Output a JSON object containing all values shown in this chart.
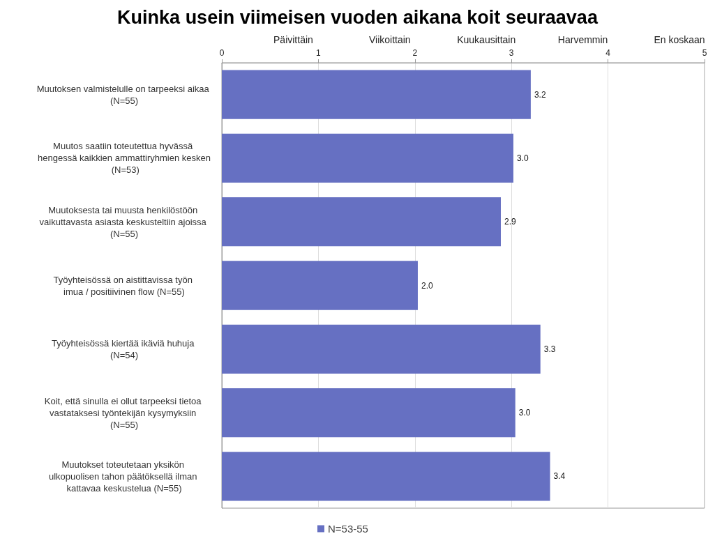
{
  "chart_data": {
    "type": "bar",
    "orientation": "horizontal",
    "title": "Kuinka usein viimeisen vuoden aikana koit seuraavaa",
    "categories": [
      "Muutoksen valmistelulle on tarpeeksi aikaa (N=55)",
      "Muutos saatiin toteutettua hyvässä hengessä kaikkien ammattiryhmien kesken (N=53)",
      "Muutoksesta tai muusta henkilöstöön vaikuttavasta asiasta keskusteltiin ajoissa (N=55)",
      "Työyhteisössä on aistittavissa työn imua / positiivinen flow (N=55)",
      "Työyhteisössä kiertää ikäviä huhuja (N=54)",
      "Koit, että sinulla ei ollut tarpeeksi tietoa vastataksesi työntekijän kysymyksiin (N=55)",
      "Muutokset toteutetaan yksikön ulkopuolisen tahon päätöksellä ilman kattavaa keskustelua (N=55)"
    ],
    "series": [
      {
        "name": "N=53-55",
        "color": "#6670c2",
        "values": [
          3.2,
          3.02,
          2.89,
          2.03,
          3.3,
          3.04,
          3.4
        ],
        "value_labels": [
          "3.2",
          "3.0",
          "2.9",
          "2.0",
          "3.3",
          "3.0",
          "3.4"
        ]
      }
    ],
    "xlim": [
      0,
      5
    ],
    "xticks": [
      0,
      1,
      2,
      3,
      4,
      5
    ],
    "annotations": [
      "Päivittäin",
      "Viikoittain",
      "Kuukausittain",
      "Harvemmin",
      "En koskaan"
    ],
    "grid": "x",
    "legend": "bottom"
  }
}
